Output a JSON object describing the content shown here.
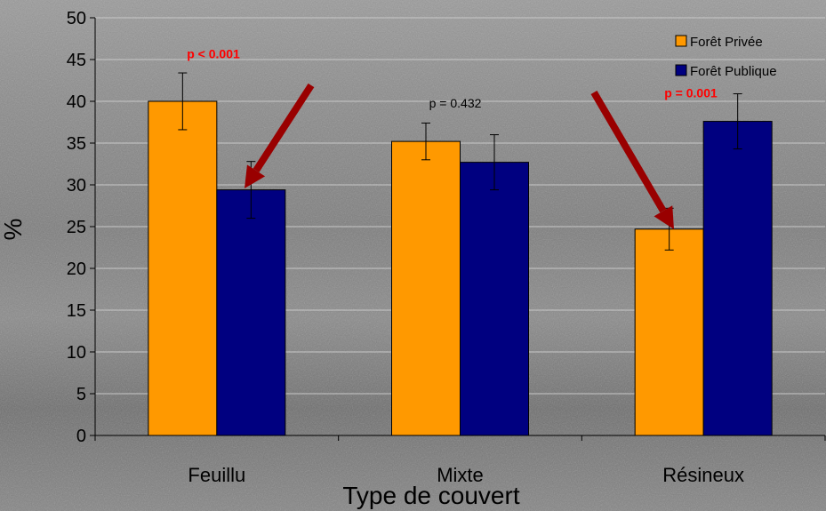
{
  "chart_data": {
    "type": "bar",
    "title": "",
    "xlabel": "Type de couvert",
    "ylabel": "%",
    "ylim": [
      0,
      50
    ],
    "yticks": [
      "0",
      "5",
      "10",
      "15",
      "20",
      "25",
      "30",
      "35",
      "40",
      "45",
      "50"
    ],
    "categories": [
      "Feuillu",
      "Mixte",
      "Résineux"
    ],
    "series": [
      {
        "name": "Forêt Privée",
        "color": "#FF9900",
        "values": [
          40.0,
          35.2,
          24.7
        ],
        "errors": [
          3.4,
          2.2,
          2.5
        ]
      },
      {
        "name": "Forêt Publique",
        "color": "#000080",
        "values": [
          29.4,
          32.7,
          37.6
        ],
        "errors": [
          3.4,
          3.3,
          3.3
        ]
      }
    ],
    "legend_position": "top-right",
    "grid": true,
    "annotations": [
      {
        "text": "p < 0.001",
        "color": "#FF0000",
        "bold": true,
        "category": "Feuillu",
        "y": 45.7
      },
      {
        "text": "p = 0.432",
        "color": "#000000",
        "bold": false,
        "category": "Mixte",
        "y": 39.8
      },
      {
        "text": "p = 0.001",
        "color": "#FF0000",
        "bold": true,
        "category": "Résineux",
        "y": 41.0
      }
    ],
    "arrows": [
      {
        "color": "#990000",
        "points_to": "Feuillu – Forêt Publique"
      },
      {
        "color": "#990000",
        "points_to": "Résineux – Forêt Privée"
      }
    ]
  }
}
